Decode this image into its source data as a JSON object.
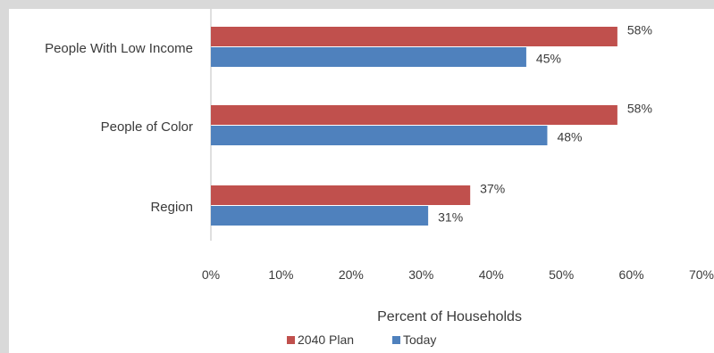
{
  "chart_data": {
    "type": "bar",
    "orientation": "horizontal",
    "categories": [
      "People With Low Income",
      "People of Color",
      "Region"
    ],
    "series": [
      {
        "name": "2040 Plan",
        "color": "#c0504d",
        "values": [
          58,
          58,
          37
        ],
        "labels": [
          "58%",
          "58%",
          "37%"
        ]
      },
      {
        "name": "Today",
        "color": "#4f81bd",
        "values": [
          45,
          48,
          31
        ],
        "labels": [
          "45%",
          "48%",
          "31%"
        ]
      }
    ],
    "xlabel": "Percent of Households",
    "xlim": [
      0,
      70
    ],
    "xticks": [
      "0%",
      "10%",
      "20%",
      "30%",
      "40%",
      "50%",
      "60%",
      "70%"
    ],
    "grid": false,
    "legend": "bottom"
  }
}
